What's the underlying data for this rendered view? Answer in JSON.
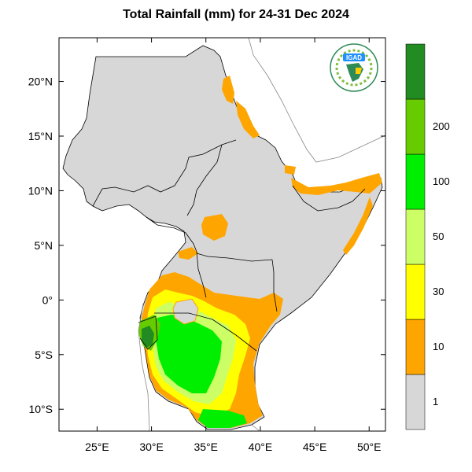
{
  "title": "Total Rainfall (mm) for 24-31 Dec 2024",
  "logo_text": "IGAD",
  "map": {
    "lon_range": [
      21.5,
      51.5
    ],
    "lat_range": [
      -12,
      24
    ],
    "lon_ticks": [
      {
        "value": 25,
        "label": "25°E"
      },
      {
        "value": 30,
        "label": "30°E"
      },
      {
        "value": 35,
        "label": "35°E"
      },
      {
        "value": 40,
        "label": "40°E"
      },
      {
        "value": 45,
        "label": "45°E"
      },
      {
        "value": 50,
        "label": "50°E"
      }
    ],
    "lat_ticks": [
      {
        "value": 20,
        "label": "20°N"
      },
      {
        "value": 15,
        "label": "15°N"
      },
      {
        "value": 10,
        "label": "10°N"
      },
      {
        "value": 5,
        "label": "5°N"
      },
      {
        "value": 0,
        "label": "0°"
      },
      {
        "value": -5,
        "label": "5°S"
      },
      {
        "value": -10,
        "label": "10°S"
      }
    ]
  },
  "colorbar": {
    "bins": [
      {
        "color": "#d7d7d7",
        "label": "1"
      },
      {
        "color": "#ffa500",
        "label": "10"
      },
      {
        "color": "#ffff00",
        "label": "30"
      },
      {
        "color": "#ccff66",
        "label": "50"
      },
      {
        "color": "#00ee00",
        "label": "100"
      },
      {
        "color": "#66cc00",
        "label": "200"
      },
      {
        "color": "#228b22",
        "label": ""
      }
    ]
  },
  "colors": {
    "land": "#d7d7d7",
    "orange": "#ffa500",
    "yellow": "#ffff00",
    "lightgreen": "#ccff66",
    "green": "#00ee00",
    "midgreen": "#66cc00",
    "darkgreen": "#228b22",
    "border": "#000000"
  }
}
